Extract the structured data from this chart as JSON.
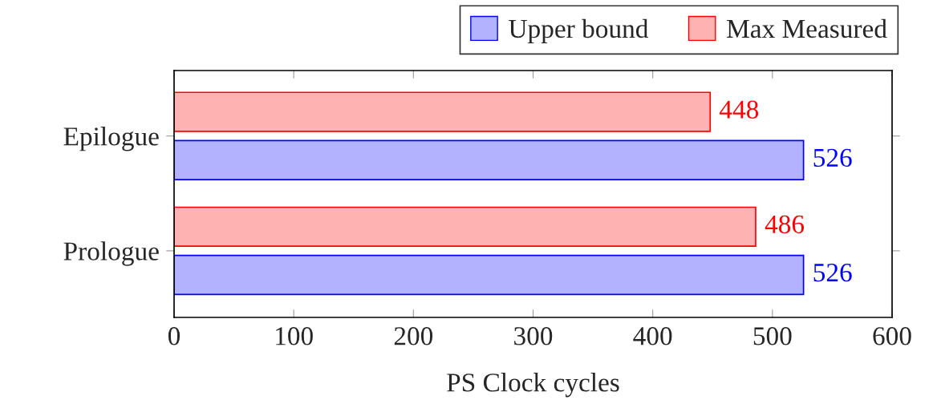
{
  "chart_data": {
    "type": "bar",
    "orientation": "horizontal",
    "xlabel": "PS Clock cycles",
    "categories": [
      "Epilogue",
      "Prologue"
    ],
    "series": [
      {
        "name": "Upper bound",
        "color": "#0000ff",
        "values": [
          526,
          526
        ]
      },
      {
        "name": "Max Measured",
        "color": "#ff0000",
        "values": [
          448,
          486
        ]
      }
    ],
    "xlim": [
      0,
      600
    ],
    "xticks": [
      0,
      100,
      200,
      300,
      400,
      500,
      600
    ],
    "data_labels": true,
    "grid": false,
    "legend": "top right"
  }
}
